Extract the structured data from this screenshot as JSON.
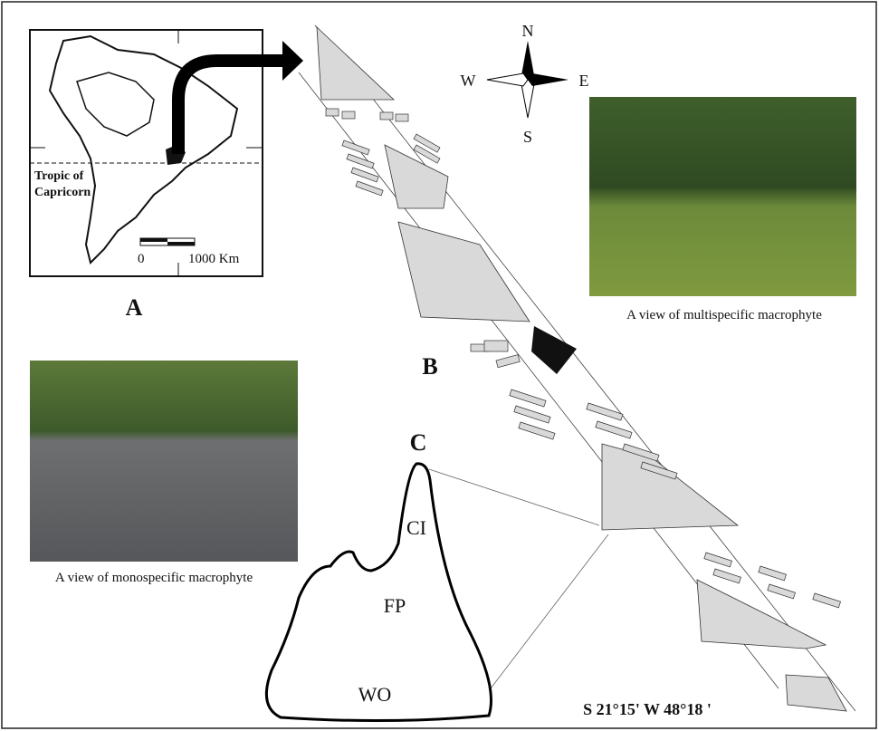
{
  "compass": {
    "north": "N",
    "west": "W",
    "east": "E",
    "south": "S"
  },
  "inset": {
    "tropic_line1": "Tropic of",
    "tropic_line2": "Capricorn",
    "scale_start": "0",
    "scale_end": "1000 Km"
  },
  "panels": {
    "a": "A",
    "b": "B",
    "c": "C"
  },
  "photos": {
    "multispecific_caption": "A view of multispecific macrophyte",
    "monospecific_caption": "A view of monospecific macrophyte"
  },
  "zones": {
    "ci": "CI",
    "fp": "FP",
    "wo": "WO"
  },
  "coordinates": "S 21°15'  W 48°18 '"
}
